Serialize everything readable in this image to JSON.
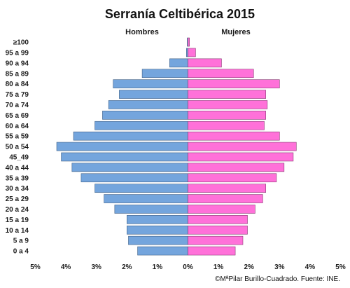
{
  "chart_data": {
    "type": "bar",
    "subtype": "population-pyramid",
    "title": "Serranía Celtibérica 2015",
    "source": "©MªPilar Burillo-Cuadrado. Fuente: INE.",
    "categories": [
      "0 a 4",
      "5 a 9",
      "10 a 14",
      "15 a 19",
      "20 a 24",
      "25 a 29",
      "30 a 34",
      "35 a 39",
      "40 a 44",
      "45_49",
      "50 a 54",
      "55 a 59",
      "60 a 64",
      "65 a 69",
      "70 a 74",
      "75 a 79",
      "80 a 84",
      "85 a 89",
      "90 a 94",
      "95 a 99",
      "≥100"
    ],
    "series": [
      {
        "name": "Hombres",
        "color": "#74a5dd",
        "values": [
          1.65,
          1.95,
          2.0,
          2.0,
          2.4,
          2.75,
          3.05,
          3.5,
          3.8,
          4.15,
          4.3,
          3.75,
          3.05,
          2.8,
          2.6,
          2.25,
          2.45,
          1.5,
          0.6,
          0.05,
          0.02
        ]
      },
      {
        "name": "Mujeres",
        "color": "#ff71d9",
        "values": [
          1.55,
          1.8,
          1.95,
          1.95,
          2.2,
          2.45,
          2.55,
          2.9,
          3.15,
          3.45,
          3.55,
          3.0,
          2.5,
          2.55,
          2.6,
          2.55,
          3.0,
          2.15,
          1.1,
          0.25,
          0.05
        ]
      }
    ],
    "xaxis": {
      "ticks": [
        "5%",
        "4%",
        "3%",
        "2%",
        "1%",
        "0%",
        "1%",
        "2%",
        "3%",
        "4%",
        "5%"
      ],
      "range": [
        -5,
        5
      ]
    },
    "grid": false,
    "legend": "top"
  }
}
